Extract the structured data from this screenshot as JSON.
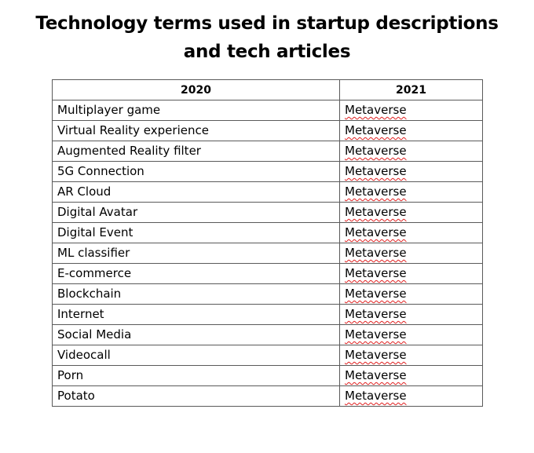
{
  "title": {
    "line1": "Technology terms used in startup descriptions",
    "line2": "and tech articles"
  },
  "table": {
    "headers": [
      "2020",
      "2021"
    ],
    "rows": [
      {
        "col2020": "Multiplayer game",
        "col2021": "Metaverse"
      },
      {
        "col2020": "Virtual Reality experience",
        "col2021": "Metaverse"
      },
      {
        "col2020": "Augmented Reality filter",
        "col2021": "Metaverse"
      },
      {
        "col2020": "5G Connection",
        "col2021": "Metaverse"
      },
      {
        "col2020": "AR Cloud",
        "col2021": "Metaverse"
      },
      {
        "col2020": "Digital Avatar",
        "col2021": "Metaverse"
      },
      {
        "col2020": "Digital Event",
        "col2021": "Metaverse"
      },
      {
        "col2020": "ML classifier",
        "col2021": "Metaverse"
      },
      {
        "col2020": "E-commerce",
        "col2021": "Metaverse"
      },
      {
        "col2020": "Blockchain",
        "col2021": "Metaverse"
      },
      {
        "col2020": "Internet",
        "col2021": "Metaverse"
      },
      {
        "col2020": "Social Media",
        "col2021": "Metaverse"
      },
      {
        "col2020": "Videocall",
        "col2021": "Metaverse"
      },
      {
        "col2020": "Porn",
        "col2021": "Metaverse"
      },
      {
        "col2020": "Potato",
        "col2021": "Metaverse"
      }
    ]
  }
}
